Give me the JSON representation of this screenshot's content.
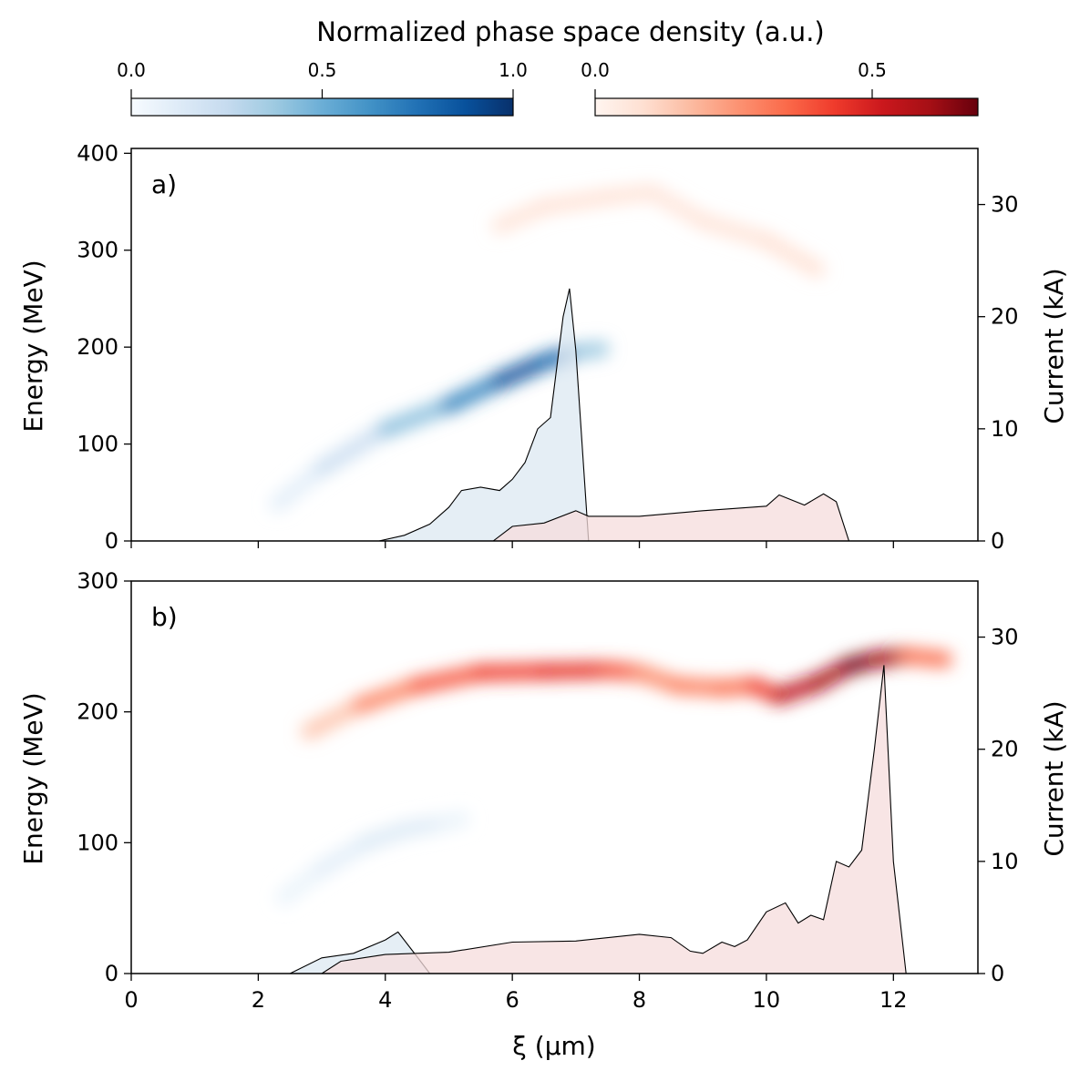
{
  "colorbar_title": "Normalized phase space density (a.u.)",
  "colorbars": [
    {
      "name": "blue",
      "stops": [
        "#f7fbff",
        "#deebf7",
        "#c6dbef",
        "#9ecae1",
        "#6baed6",
        "#4292c6",
        "#2171b5",
        "#08519c",
        "#08306b"
      ],
      "range": [
        0,
        1.0
      ],
      "ticks": [
        "0.0",
        "0.5",
        "1.0"
      ]
    },
    {
      "name": "red",
      "stops": [
        "#fff5f0",
        "#fee0d2",
        "#fcbba1",
        "#fc9272",
        "#fb6a4a",
        "#ef3b2c",
        "#cb181d",
        "#a50f15",
        "#67000d"
      ],
      "range": [
        0,
        0.69
      ],
      "ticks": [
        "0.0",
        "0.5"
      ]
    }
  ],
  "colors": {
    "blue_fill": "#dce8f2",
    "red_fill": "#f5dcdc",
    "line": "#000000"
  },
  "x_axis": {
    "label": "ξ (μm)",
    "range": [
      0,
      13.33
    ],
    "ticks": [
      "0",
      "2",
      "4",
      "6",
      "8",
      "10",
      "12"
    ]
  },
  "y_axis_left": {
    "label": "Energy (MeV)"
  },
  "y_axis_right": {
    "label": "Current (kA)",
    "range": [
      0,
      35
    ],
    "ticks": [
      "0",
      "10",
      "20",
      "30"
    ]
  },
  "chart_data": [
    {
      "type": "heatmap",
      "panel_label": "a)",
      "ylim": [
        0,
        405
      ],
      "yticks": [
        "0",
        "100",
        "200",
        "300",
        "400"
      ],
      "blue_bunch": [
        [
          2.3,
          38,
          0.05
        ],
        [
          3.0,
          75,
          0.15
        ],
        [
          4.0,
          115,
          0.3
        ],
        [
          5.0,
          140,
          0.55
        ],
        [
          5.8,
          165,
          0.8
        ],
        [
          6.5,
          185,
          0.95
        ],
        [
          7.0,
          195,
          0.6
        ],
        [
          7.4,
          198,
          0.15
        ]
      ],
      "red_bunch": [
        [
          5.8,
          325,
          0.06
        ],
        [
          6.5,
          345,
          0.07
        ],
        [
          7.5,
          355,
          0.07
        ],
        [
          8.2,
          360,
          0.06
        ],
        [
          9.0,
          330,
          0.06
        ],
        [
          10.0,
          310,
          0.07
        ],
        [
          10.8,
          280,
          0.08
        ]
      ],
      "current_blue": {
        "x": [
          3.9,
          4.3,
          4.7,
          5.0,
          5.2,
          5.5,
          5.8,
          6.0,
          6.2,
          6.4,
          6.6,
          6.8,
          6.9,
          7.0,
          7.2
        ],
        "y": [
          0,
          0.5,
          1.5,
          3,
          4.5,
          4.8,
          4.5,
          5.5,
          7,
          10,
          11,
          20,
          22.5,
          17,
          0
        ]
      },
      "current_red": {
        "x": [
          5.7,
          6.0,
          6.5,
          7.0,
          7.2,
          8.0,
          9.0,
          10.0,
          10.2,
          10.6,
          10.9,
          11.1,
          11.3
        ],
        "y": [
          0,
          1.3,
          1.6,
          2.7,
          2.2,
          2.2,
          2.7,
          3.1,
          4.1,
          3.2,
          4.2,
          3.5,
          0
        ]
      }
    },
    {
      "type": "heatmap",
      "panel_label": "b)",
      "ylim": [
        0,
        300
      ],
      "yticks": [
        "0",
        "100",
        "200",
        "300"
      ],
      "blue_bunch": [
        [
          2.4,
          58,
          0.05
        ],
        [
          3.0,
          80,
          0.08
        ],
        [
          3.7,
          100,
          0.12
        ],
        [
          4.3,
          110,
          0.15
        ],
        [
          4.9,
          115,
          0.1
        ],
        [
          5.2,
          118,
          0.03
        ]
      ],
      "red_bunch": [
        [
          2.8,
          185,
          0.08
        ],
        [
          3.6,
          205,
          0.22
        ],
        [
          4.5,
          220,
          0.35
        ],
        [
          5.5,
          230,
          0.4
        ],
        [
          6.5,
          231,
          0.45
        ],
        [
          7.5,
          232,
          0.45
        ],
        [
          8.0,
          230,
          0.3
        ],
        [
          8.6,
          220,
          0.25
        ],
        [
          9.3,
          218,
          0.35
        ],
        [
          9.8,
          220,
          0.3
        ],
        [
          10.2,
          212,
          0.55
        ],
        [
          10.8,
          222,
          0.55
        ],
        [
          11.3,
          235,
          0.65
        ],
        [
          11.7,
          240,
          0.7
        ],
        [
          12.2,
          243,
          0.5
        ],
        [
          12.8,
          240,
          0.15
        ]
      ],
      "current_blue": {
        "x": [
          2.5,
          3.0,
          3.5,
          4.0,
          4.2,
          4.5,
          4.7
        ],
        "y": [
          0,
          1.4,
          1.8,
          3.0,
          3.7,
          1.5,
          0
        ]
      },
      "current_red": {
        "x": [
          3.0,
          3.3,
          4.0,
          5.0,
          6.0,
          7.0,
          8.0,
          8.5,
          8.8,
          9.0,
          9.3,
          9.5,
          9.7,
          10.0,
          10.3,
          10.5,
          10.7,
          10.9,
          11.1,
          11.3,
          11.5,
          11.7,
          11.85,
          12.0,
          12.2
        ],
        "y": [
          0,
          1.1,
          1.7,
          1.9,
          2.8,
          2.9,
          3.5,
          3.2,
          2.0,
          1.8,
          2.8,
          2.4,
          3.0,
          5.5,
          6.3,
          4.5,
          5.2,
          4.8,
          10.0,
          9.5,
          11.0,
          20.0,
          27.5,
          10.0,
          0
        ]
      }
    }
  ]
}
